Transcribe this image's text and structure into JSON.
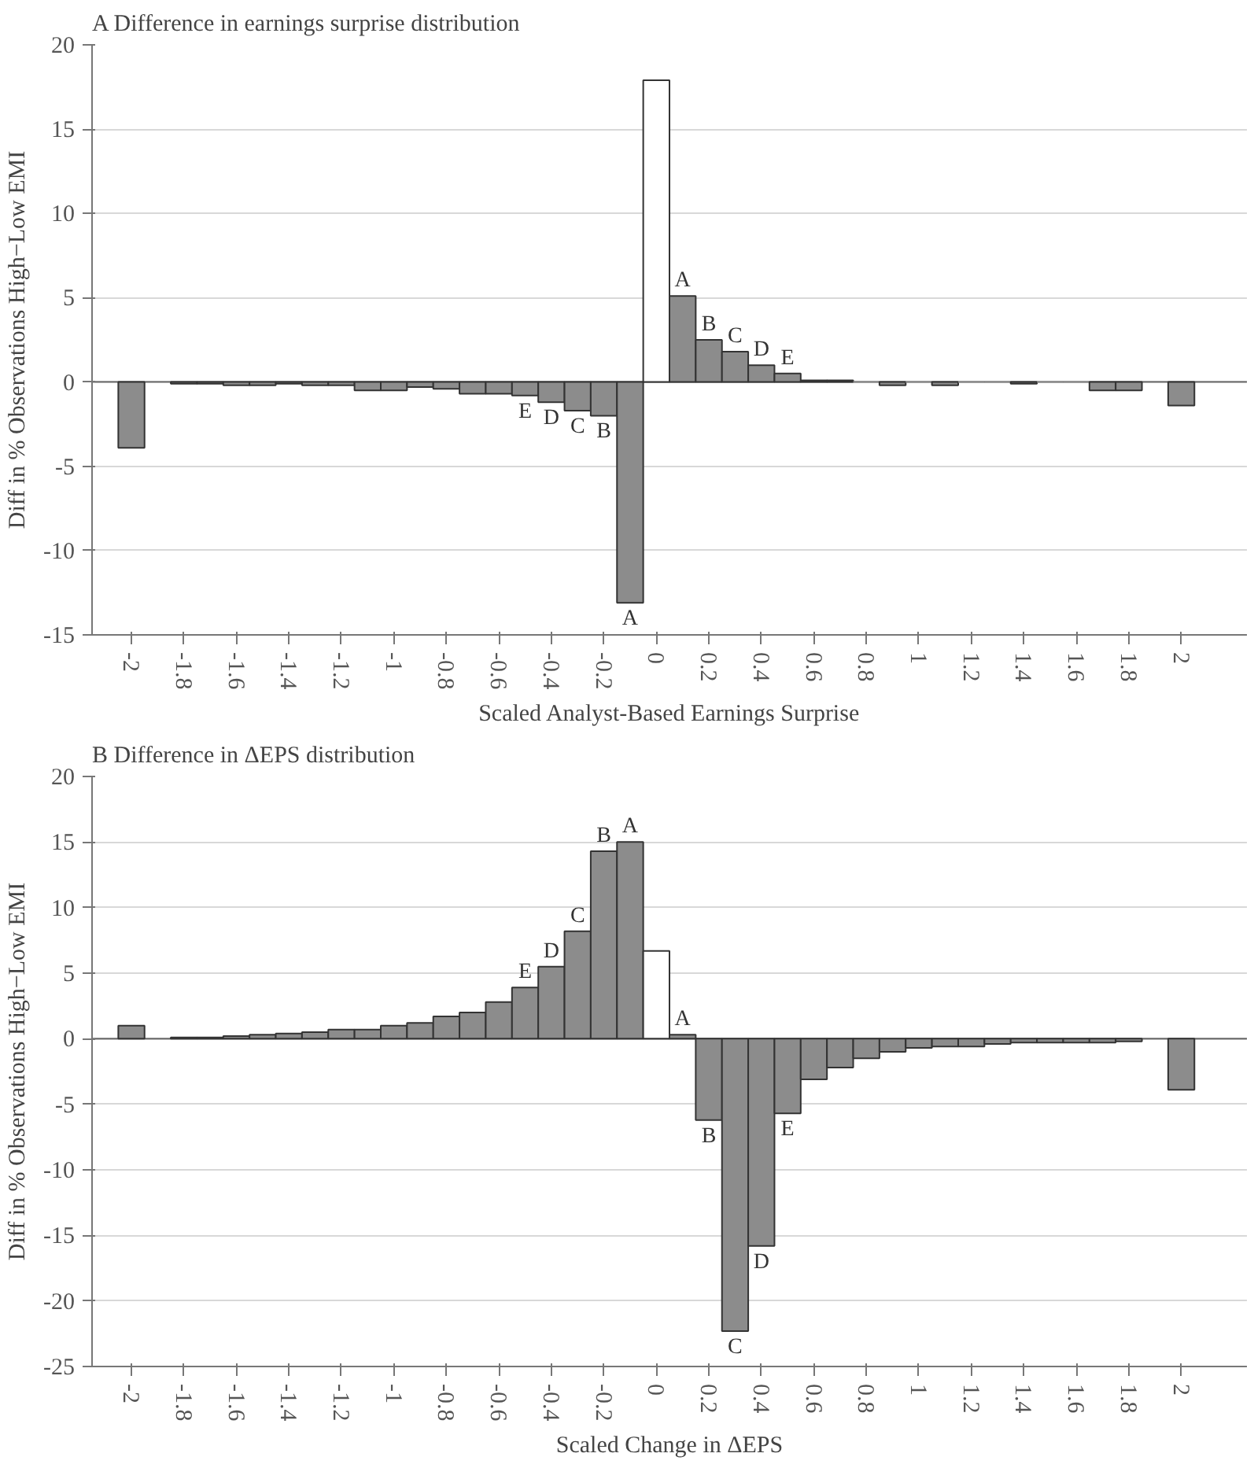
{
  "chart_data": [
    {
      "type": "bar",
      "title": "A Difference in earnings surprise distribution",
      "xlabel": "Scaled Analyst-Based Earnings Surprise",
      "ylabel": "Diff in % Observations High−Low EMI",
      "x": [
        -2,
        -1.8,
        -1.7,
        -1.6,
        -1.5,
        -1.4,
        -1.3,
        -1.2,
        -1.1,
        -1.0,
        -0.9,
        -0.8,
        -0.7,
        -0.6,
        -0.5,
        -0.4,
        -0.3,
        -0.2,
        -0.1,
        0,
        0.1,
        0.2,
        0.3,
        0.4,
        0.5,
        0.6,
        0.7,
        0.8,
        0.9,
        1.0,
        1.1,
        1.2,
        1.3,
        1.4,
        1.5,
        1.6,
        1.7,
        1.8,
        2
      ],
      "values": [
        -3.9,
        -0.1,
        -0.1,
        -0.2,
        -0.2,
        -0.1,
        -0.2,
        -0.2,
        -0.5,
        -0.5,
        -0.3,
        -0.4,
        -0.7,
        -0.7,
        -0.8,
        -1.2,
        -1.7,
        -2.0,
        -13.1,
        17.9,
        5.1,
        2.5,
        1.8,
        1.0,
        0.5,
        0.1,
        0.1,
        0,
        -0.2,
        0,
        -0.2,
        0,
        0,
        -0.1,
        0,
        0,
        -0.5,
        -0.5,
        -1.4
      ],
      "colors": [
        "#8c8c8c",
        "#8c8c8c",
        "#8c8c8c",
        "#8c8c8c",
        "#8c8c8c",
        "#8c8c8c",
        "#8c8c8c",
        "#8c8c8c",
        "#8c8c8c",
        "#8c8c8c",
        "#8c8c8c",
        "#8c8c8c",
        "#8c8c8c",
        "#8c8c8c",
        "#8c8c8c",
        "#8c8c8c",
        "#8c8c8c",
        "#8c8c8c",
        "#8c8c8c",
        "#ffffff",
        "#8c8c8c",
        "#8c8c8c",
        "#8c8c8c",
        "#8c8c8c",
        "#8c8c8c",
        "#8c8c8c",
        "#8c8c8c",
        "#8c8c8c",
        "#8c8c8c",
        "#8c8c8c",
        "#8c8c8c",
        "#8c8c8c",
        "#8c8c8c",
        "#8c8c8c",
        "#8c8c8c",
        "#8c8c8c",
        "#8c8c8c",
        "#8c8c8c",
        "#8c8c8c"
      ],
      "xlim": [
        -2.15,
        2.25
      ],
      "xticks": [
        -2,
        -1.8,
        -1.6,
        -1.4,
        -1.2,
        -1,
        -0.8,
        -0.6,
        -0.4,
        -0.2,
        0,
        0.2,
        0.4,
        0.6,
        0.8,
        1,
        1.2,
        1.4,
        1.6,
        1.8,
        2
      ],
      "ylim": [
        -15,
        20
      ],
      "yticks": [
        -15,
        -10,
        -5,
        0,
        5,
        10,
        15,
        20
      ],
      "grid": "y",
      "annotations": [
        {
          "text": "A",
          "x": -0.1,
          "y": -13.1
        },
        {
          "text": "B",
          "x": -0.2,
          "y": -2.0
        },
        {
          "text": "C",
          "x": -0.3,
          "y": -1.7
        },
        {
          "text": "D",
          "x": -0.4,
          "y": -1.2
        },
        {
          "text": "E",
          "x": -0.5,
          "y": -0.8
        },
        {
          "text": "A",
          "x": 0.1,
          "y": 5.1
        },
        {
          "text": "B",
          "x": 0.2,
          "y": 2.5
        },
        {
          "text": "C",
          "x": 0.3,
          "y": 1.8
        },
        {
          "text": "D",
          "x": 0.4,
          "y": 1.0
        },
        {
          "text": "E",
          "x": 0.5,
          "y": 0.5
        }
      ]
    },
    {
      "type": "bar",
      "title": "B Difference in ΔEPS distribution",
      "xlabel": "Scaled Change in ΔEPS",
      "ylabel": "Diff in % Observations High−Low EMI",
      "x": [
        -2,
        -1.8,
        -1.7,
        -1.6,
        -1.5,
        -1.4,
        -1.3,
        -1.2,
        -1.1,
        -1.0,
        -0.9,
        -0.8,
        -0.7,
        -0.6,
        -0.5,
        -0.4,
        -0.3,
        -0.2,
        -0.1,
        0,
        0.1,
        0.2,
        0.3,
        0.4,
        0.5,
        0.6,
        0.7,
        0.8,
        0.9,
        1.0,
        1.1,
        1.2,
        1.3,
        1.4,
        1.5,
        1.6,
        1.7,
        1.8,
        2
      ],
      "values": [
        1.0,
        0.1,
        0.1,
        0.2,
        0.3,
        0.4,
        0.5,
        0.7,
        0.7,
        1.0,
        1.2,
        1.7,
        2.0,
        2.8,
        3.9,
        5.5,
        8.2,
        14.3,
        15.0,
        6.7,
        0.3,
        -6.2,
        -22.3,
        -15.8,
        -5.7,
        -3.1,
        -2.2,
        -1.5,
        -1.0,
        -0.7,
        -0.6,
        -0.6,
        -0.4,
        -0.3,
        -0.3,
        -0.3,
        -0.3,
        -0.2,
        -3.9
      ],
      "colors": [
        "#8c8c8c",
        "#8c8c8c",
        "#8c8c8c",
        "#8c8c8c",
        "#8c8c8c",
        "#8c8c8c",
        "#8c8c8c",
        "#8c8c8c",
        "#8c8c8c",
        "#8c8c8c",
        "#8c8c8c",
        "#8c8c8c",
        "#8c8c8c",
        "#8c8c8c",
        "#8c8c8c",
        "#8c8c8c",
        "#8c8c8c",
        "#8c8c8c",
        "#8c8c8c",
        "#ffffff",
        "#8c8c8c",
        "#8c8c8c",
        "#8c8c8c",
        "#8c8c8c",
        "#8c8c8c",
        "#8c8c8c",
        "#8c8c8c",
        "#8c8c8c",
        "#8c8c8c",
        "#8c8c8c",
        "#8c8c8c",
        "#8c8c8c",
        "#8c8c8c",
        "#8c8c8c",
        "#8c8c8c",
        "#8c8c8c",
        "#8c8c8c",
        "#8c8c8c",
        "#8c8c8c"
      ],
      "xlim": [
        -2.15,
        2.25
      ],
      "xticks": [
        -2,
        -1.8,
        -1.6,
        -1.4,
        -1.2,
        -1,
        -0.8,
        -0.6,
        -0.4,
        -0.2,
        0,
        0.2,
        0.4,
        0.6,
        0.8,
        1,
        1.2,
        1.4,
        1.6,
        1.8,
        2
      ],
      "ylim": [
        -25,
        20
      ],
      "yticks": [
        -25,
        -20,
        -15,
        -10,
        -5,
        0,
        5,
        10,
        15,
        20
      ],
      "grid": "y",
      "annotations": [
        {
          "text": "E",
          "x": -0.5,
          "y": 3.9
        },
        {
          "text": "D",
          "x": -0.4,
          "y": 5.5
        },
        {
          "text": "C",
          "x": -0.3,
          "y": 8.2
        },
        {
          "text": "B",
          "x": -0.2,
          "y": 14.3
        },
        {
          "text": "A",
          "x": -0.1,
          "y": 15.0
        },
        {
          "text": "A",
          "x": 0.1,
          "y": 0.3
        },
        {
          "text": "B",
          "x": 0.2,
          "y": -6.2
        },
        {
          "text": "C",
          "x": 0.3,
          "y": -22.3
        },
        {
          "text": "D",
          "x": 0.4,
          "y": -15.8
        },
        {
          "text": "E",
          "x": 0.5,
          "y": -5.7
        }
      ]
    }
  ]
}
